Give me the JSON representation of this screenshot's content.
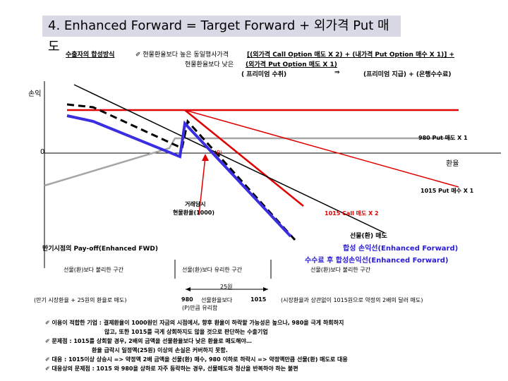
{
  "title": "4. Enhanced Forward  = Target Forward + 외가격 Put 매도",
  "header": {
    "label": "수출자의 합성방식",
    "line1_prefix": "✐ 현물환율보다 높은 동일행사가격",
    "line1_formula": "[(외가격 Call Option 매도 X 2) + (내가격 Put Option 매수 X 1)] +",
    "line2_prefix": "현물환율보다 낮은",
    "line2_formula": "(외가격 Put Option 매도 X 1)",
    "line3_left": "( 프리미엄 수취)",
    "line3_arrow": "⇒",
    "line3_right": "(프리미엄 지급) + (은행수수료)"
  },
  "axes": {
    "y_label": "손익",
    "zero": "0",
    "x_label": "환율"
  },
  "labels": {
    "put_sell": "980 Put 매도 X 1",
    "p_mark": "(P)",
    "put_buy": "1015 Put 매수 X 1",
    "contract_line1": "거래당시",
    "contract_line2": "현물환율(1000)",
    "call_sell": "1015 Call 매도 X 2",
    "forward_sell": "선물(환) 매도",
    "synthetic": "합성 손익선(Enhanced Forward)",
    "exporter_synthetic": "수수료 후 합성손익선(Enhanced Forward)",
    "payoff_heading": "만기시점의 Pay-off(Enhanced FWD)",
    "zone_unfav_left": "선물(환)보다 불리한 구간",
    "zone_fav": "선물(환)보다 유리한 구간",
    "zone_unfav_right": "선물(환)보다 불리한 구간",
    "gap": "25원",
    "bottom_left": "(만기 시장환율 + 25원의 환율로 매도)",
    "b980": "980",
    "bottom_mid": "선물환율보다",
    "b1015": "1015",
    "bottom_mid2": "(P)만큼 유리함",
    "bottom_right": "(시장환율과 상관없이 1015원으로 약정의 2배의 달러 매도)"
  },
  "notes": [
    "✐ 이용이 적합한 기업 :  결제환율이 1000원인 자금의 시점에서, 향후 환율이 하락할 가능성은 높으나, 980을 극게 하회하지",
    "않고, 또한 1015를 극게 상회하지도 않을 것으로 판단하는 수출기업",
    "✐ 문제점 : 1015를 상회할 경우, 2배의 금액을 선물환율보다 낮은 환율로 매도해야…",
    "환율 급락시 일정액(25원) 이상의 손실은 커버하지 못함.",
    "✐ 대응 : 1015이상 상승시 => 약정액 2배 금액을 선물(환) 매수, 980 이하로 하락시 => 약정액만큼 선물(환) 매도로 대응",
    "✐ 대응상의 문제점 : 1015 와 980을 상하로 자주 등락하는 경우, 선물매도와 청산을 반복하야 하는 불편"
  ],
  "colors": {
    "red": "#e00000",
    "blue": "#3a2ee0",
    "gray": "#a6a6a6",
    "dashed": "#000000",
    "title_bg": "#d9d9e6"
  }
}
